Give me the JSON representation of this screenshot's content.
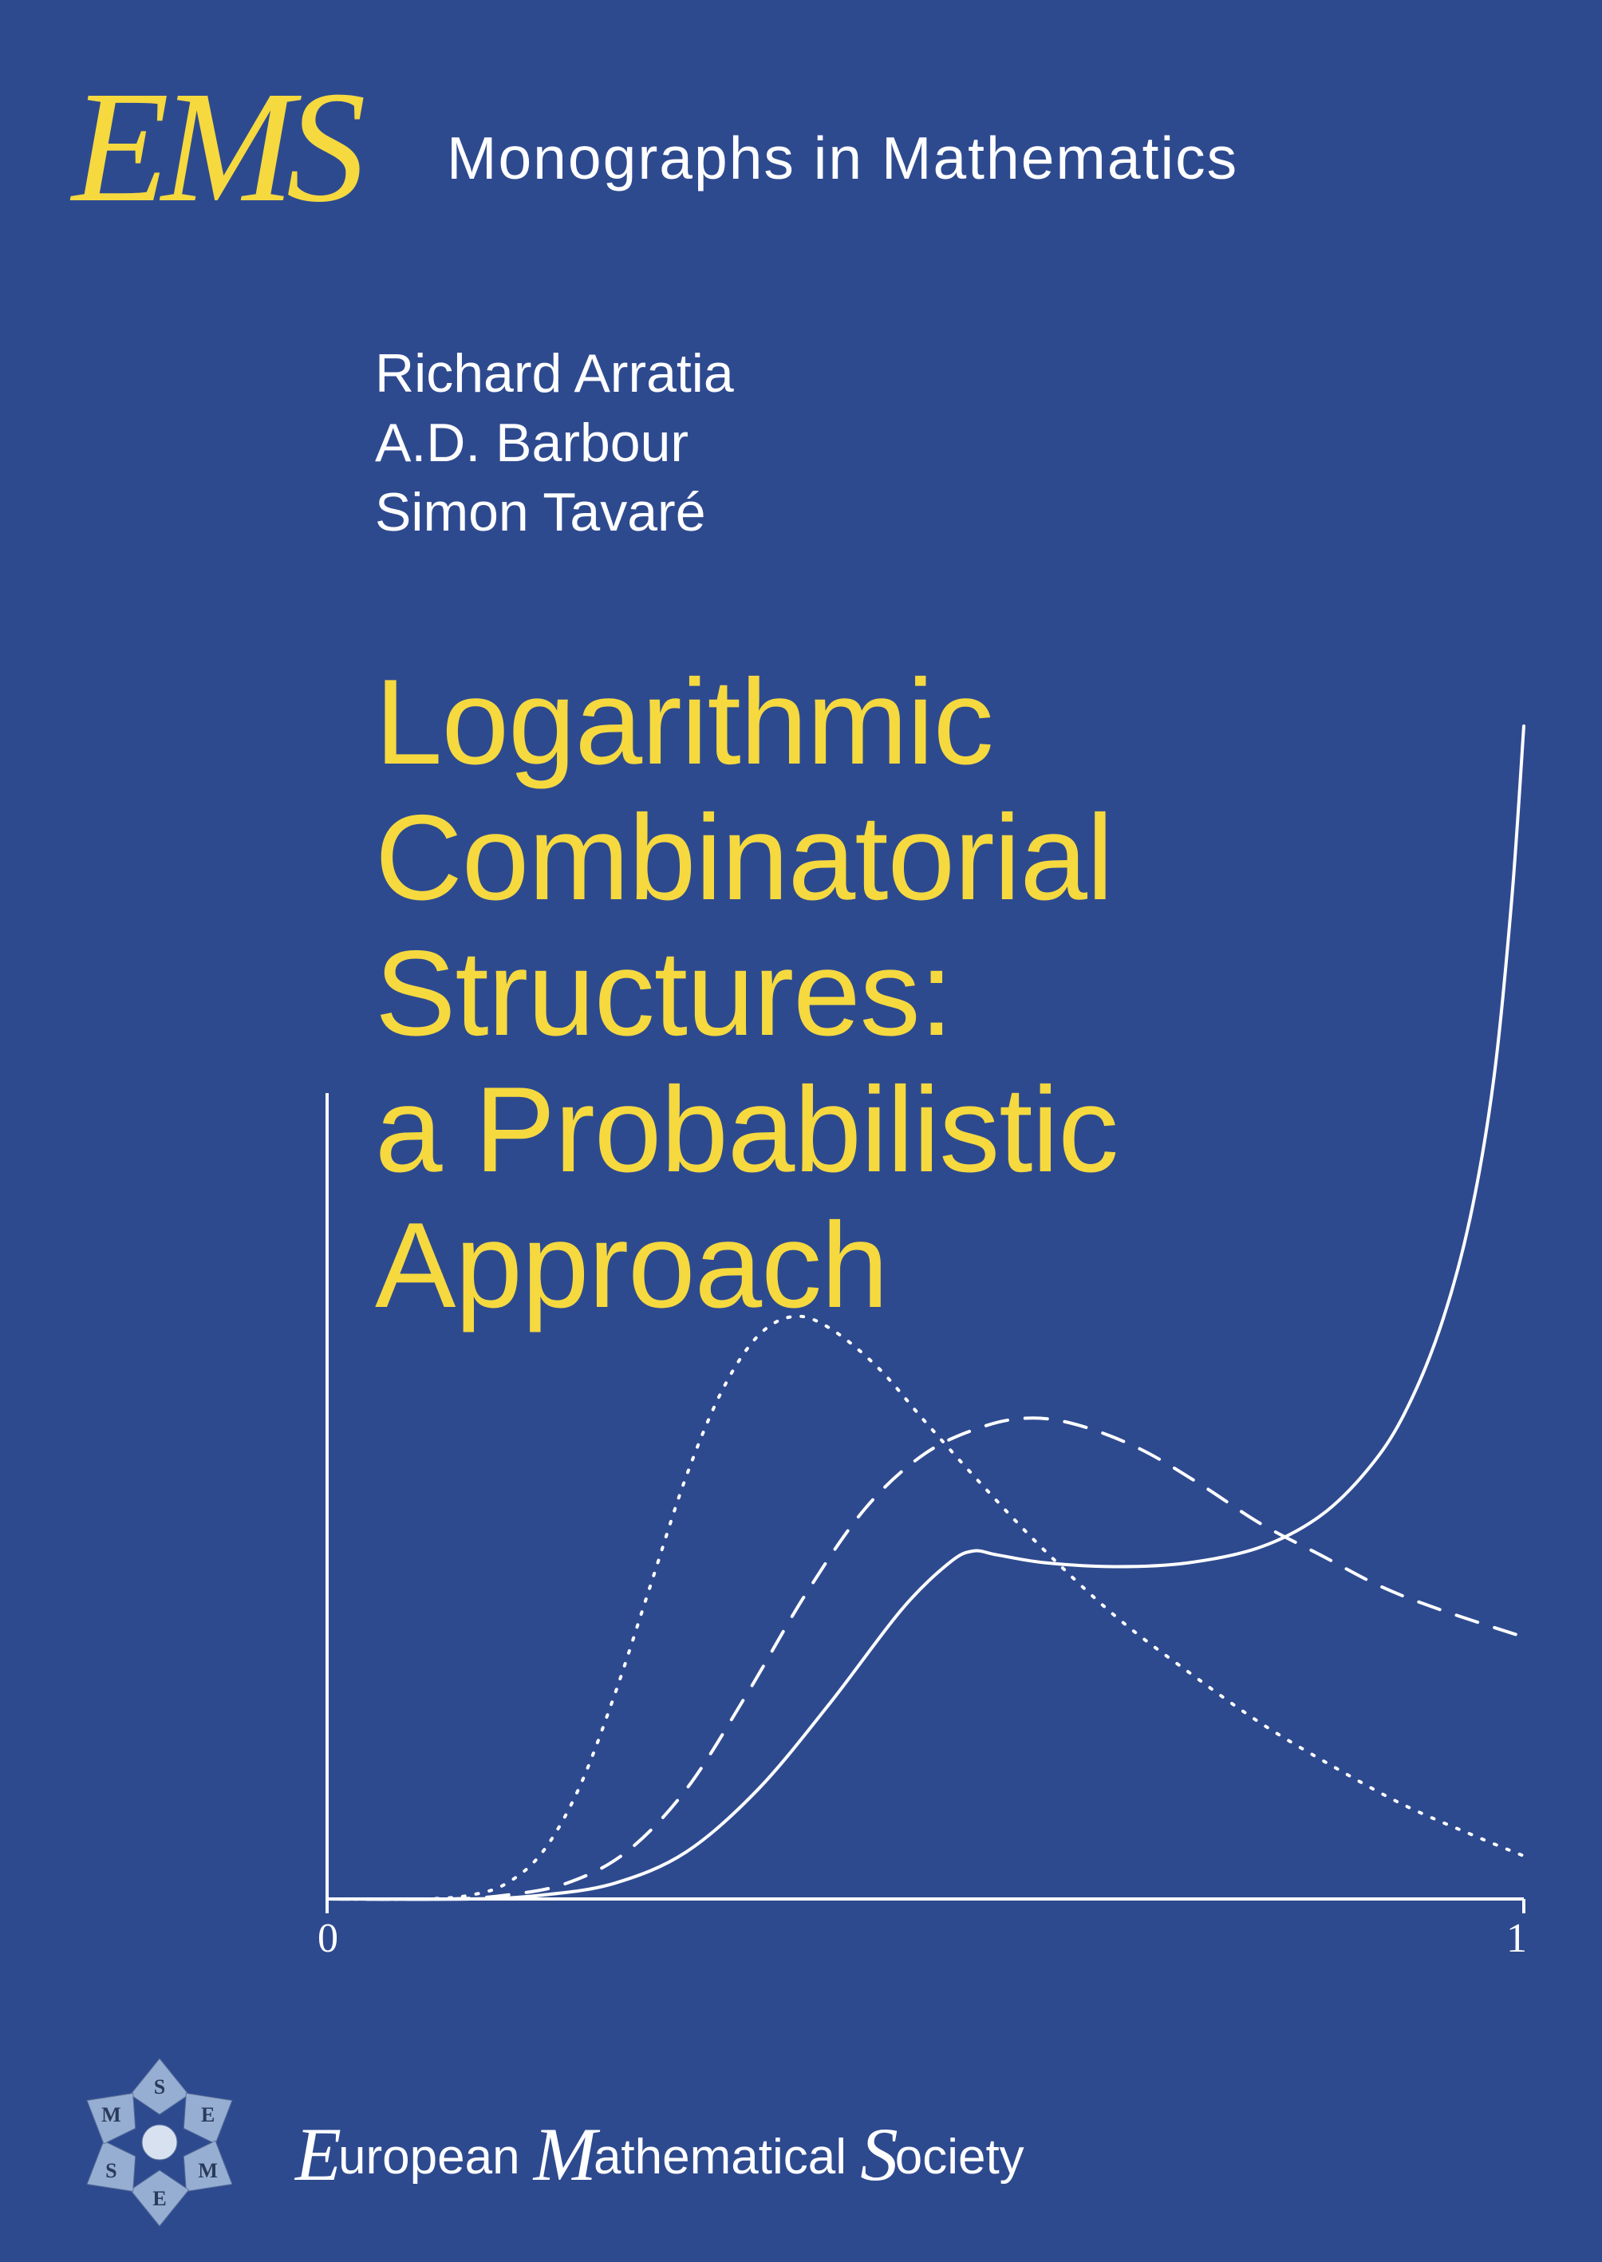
{
  "series": {
    "logo_text": "EMS",
    "name": "Monographs in Mathematics",
    "logo_color": "#f5d93f",
    "text_color": "#ffffff"
  },
  "authors": [
    "Richard Arratia",
    "A.D. Barbour",
    "Simon Tavaré"
  ],
  "title_lines": [
    "Logarithmic",
    "Combinatorial",
    "Structures:",
    "a Probabilistic",
    "Approach"
  ],
  "title_color": "#f5d93f",
  "background_color": "#2e4a8f",
  "chart": {
    "type": "line",
    "xlim": [
      0,
      1
    ],
    "x_ticks": [
      "0",
      "1"
    ],
    "axis_color": "#ffffff",
    "stroke_color": "#ffffff",
    "stroke_width": 4,
    "curves": [
      {
        "name": "dotted",
        "dash": "dotted",
        "points": [
          [
            0.0,
            0.0
          ],
          [
            0.08,
            0.0
          ],
          [
            0.12,
            0.005
          ],
          [
            0.15,
            0.02
          ],
          [
            0.18,
            0.06
          ],
          [
            0.21,
            0.14
          ],
          [
            0.24,
            0.26
          ],
          [
            0.27,
            0.4
          ],
          [
            0.3,
            0.54
          ],
          [
            0.33,
            0.65
          ],
          [
            0.36,
            0.72
          ],
          [
            0.39,
            0.745
          ],
          [
            0.42,
            0.73
          ],
          [
            0.46,
            0.68
          ],
          [
            0.5,
            0.61
          ],
          [
            0.55,
            0.525
          ],
          [
            0.6,
            0.445
          ],
          [
            0.66,
            0.36
          ],
          [
            0.72,
            0.29
          ],
          [
            0.78,
            0.225
          ],
          [
            0.84,
            0.17
          ],
          [
            0.9,
            0.12
          ],
          [
            0.96,
            0.08
          ],
          [
            1.0,
            0.055
          ]
        ]
      },
      {
        "name": "dashed",
        "dash": "dashed",
        "points": [
          [
            0.0,
            0.0
          ],
          [
            0.1,
            0.0
          ],
          [
            0.15,
            0.005
          ],
          [
            0.2,
            0.02
          ],
          [
            0.25,
            0.06
          ],
          [
            0.3,
            0.14
          ],
          [
            0.35,
            0.26
          ],
          [
            0.4,
            0.39
          ],
          [
            0.45,
            0.5
          ],
          [
            0.5,
            0.57
          ],
          [
            0.55,
            0.605
          ],
          [
            0.59,
            0.615
          ],
          [
            0.63,
            0.605
          ],
          [
            0.68,
            0.575
          ],
          [
            0.73,
            0.53
          ],
          [
            0.78,
            0.48
          ],
          [
            0.83,
            0.44
          ],
          [
            0.88,
            0.4
          ],
          [
            0.93,
            0.37
          ],
          [
            1.0,
            0.335
          ]
        ]
      },
      {
        "name": "solid",
        "dash": "solid",
        "points": [
          [
            0.0,
            0.0
          ],
          [
            0.12,
            0.0
          ],
          [
            0.18,
            0.005
          ],
          [
            0.24,
            0.02
          ],
          [
            0.3,
            0.06
          ],
          [
            0.36,
            0.14
          ],
          [
            0.42,
            0.25
          ],
          [
            0.48,
            0.37
          ],
          [
            0.52,
            0.43
          ],
          [
            0.54,
            0.445
          ],
          [
            0.56,
            0.44
          ],
          [
            0.6,
            0.43
          ],
          [
            0.66,
            0.425
          ],
          [
            0.72,
            0.43
          ],
          [
            0.78,
            0.45
          ],
          [
            0.83,
            0.49
          ],
          [
            0.87,
            0.55
          ],
          [
            0.9,
            0.62
          ],
          [
            0.93,
            0.73
          ],
          [
            0.955,
            0.87
          ],
          [
            0.975,
            1.05
          ],
          [
            0.99,
            1.28
          ],
          [
            1.0,
            1.5
          ]
        ]
      }
    ]
  },
  "publisher": {
    "parts": [
      {
        "cap": "E",
        "rest": "uropean "
      },
      {
        "cap": "M",
        "rest": "athematical "
      },
      {
        "cap": "S",
        "rest": "ociety"
      }
    ],
    "emblem_letters": [
      "S",
      "E",
      "M",
      "E",
      "S",
      "M"
    ],
    "emblem_color": "#9fb7d8"
  }
}
